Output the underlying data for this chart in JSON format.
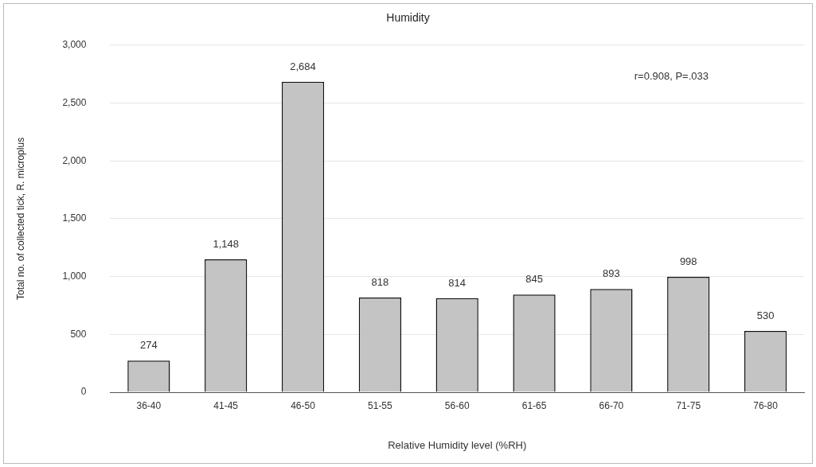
{
  "chart_data": {
    "type": "bar",
    "title": "Humidity",
    "xlabel": "Relative Humidity level (%RH)",
    "ylabel": "Total no. of collected tick, R. microplus",
    "categories": [
      "36-40",
      "41-45",
      "46-50",
      "51-55",
      "56-60",
      "61-65",
      "66-70",
      "71-75",
      "76-80"
    ],
    "values": [
      274,
      1148,
      2684,
      818,
      814,
      845,
      893,
      998,
      530
    ],
    "color": "#c4c4c4",
    "value_labels": [
      "274",
      "1,148",
      "2,684",
      "818",
      "814",
      "845",
      "893",
      "998",
      "530"
    ],
    "ylim": [
      0,
      3000
    ],
    "yticks": [
      0,
      500,
      {
        "value": 1000,
        "label": "1,000"
      },
      {
        "value": 1500,
        "label": "1,500"
      },
      {
        "value": 2000,
        "label": "2,000"
      },
      {
        "value": 2500,
        "label": "2,500"
      },
      {
        "value": 3000,
        "label": "3,000"
      }
    ],
    "grid": "y",
    "legend": false,
    "annotations": [
      "r=0.908, P=.033"
    ]
  }
}
